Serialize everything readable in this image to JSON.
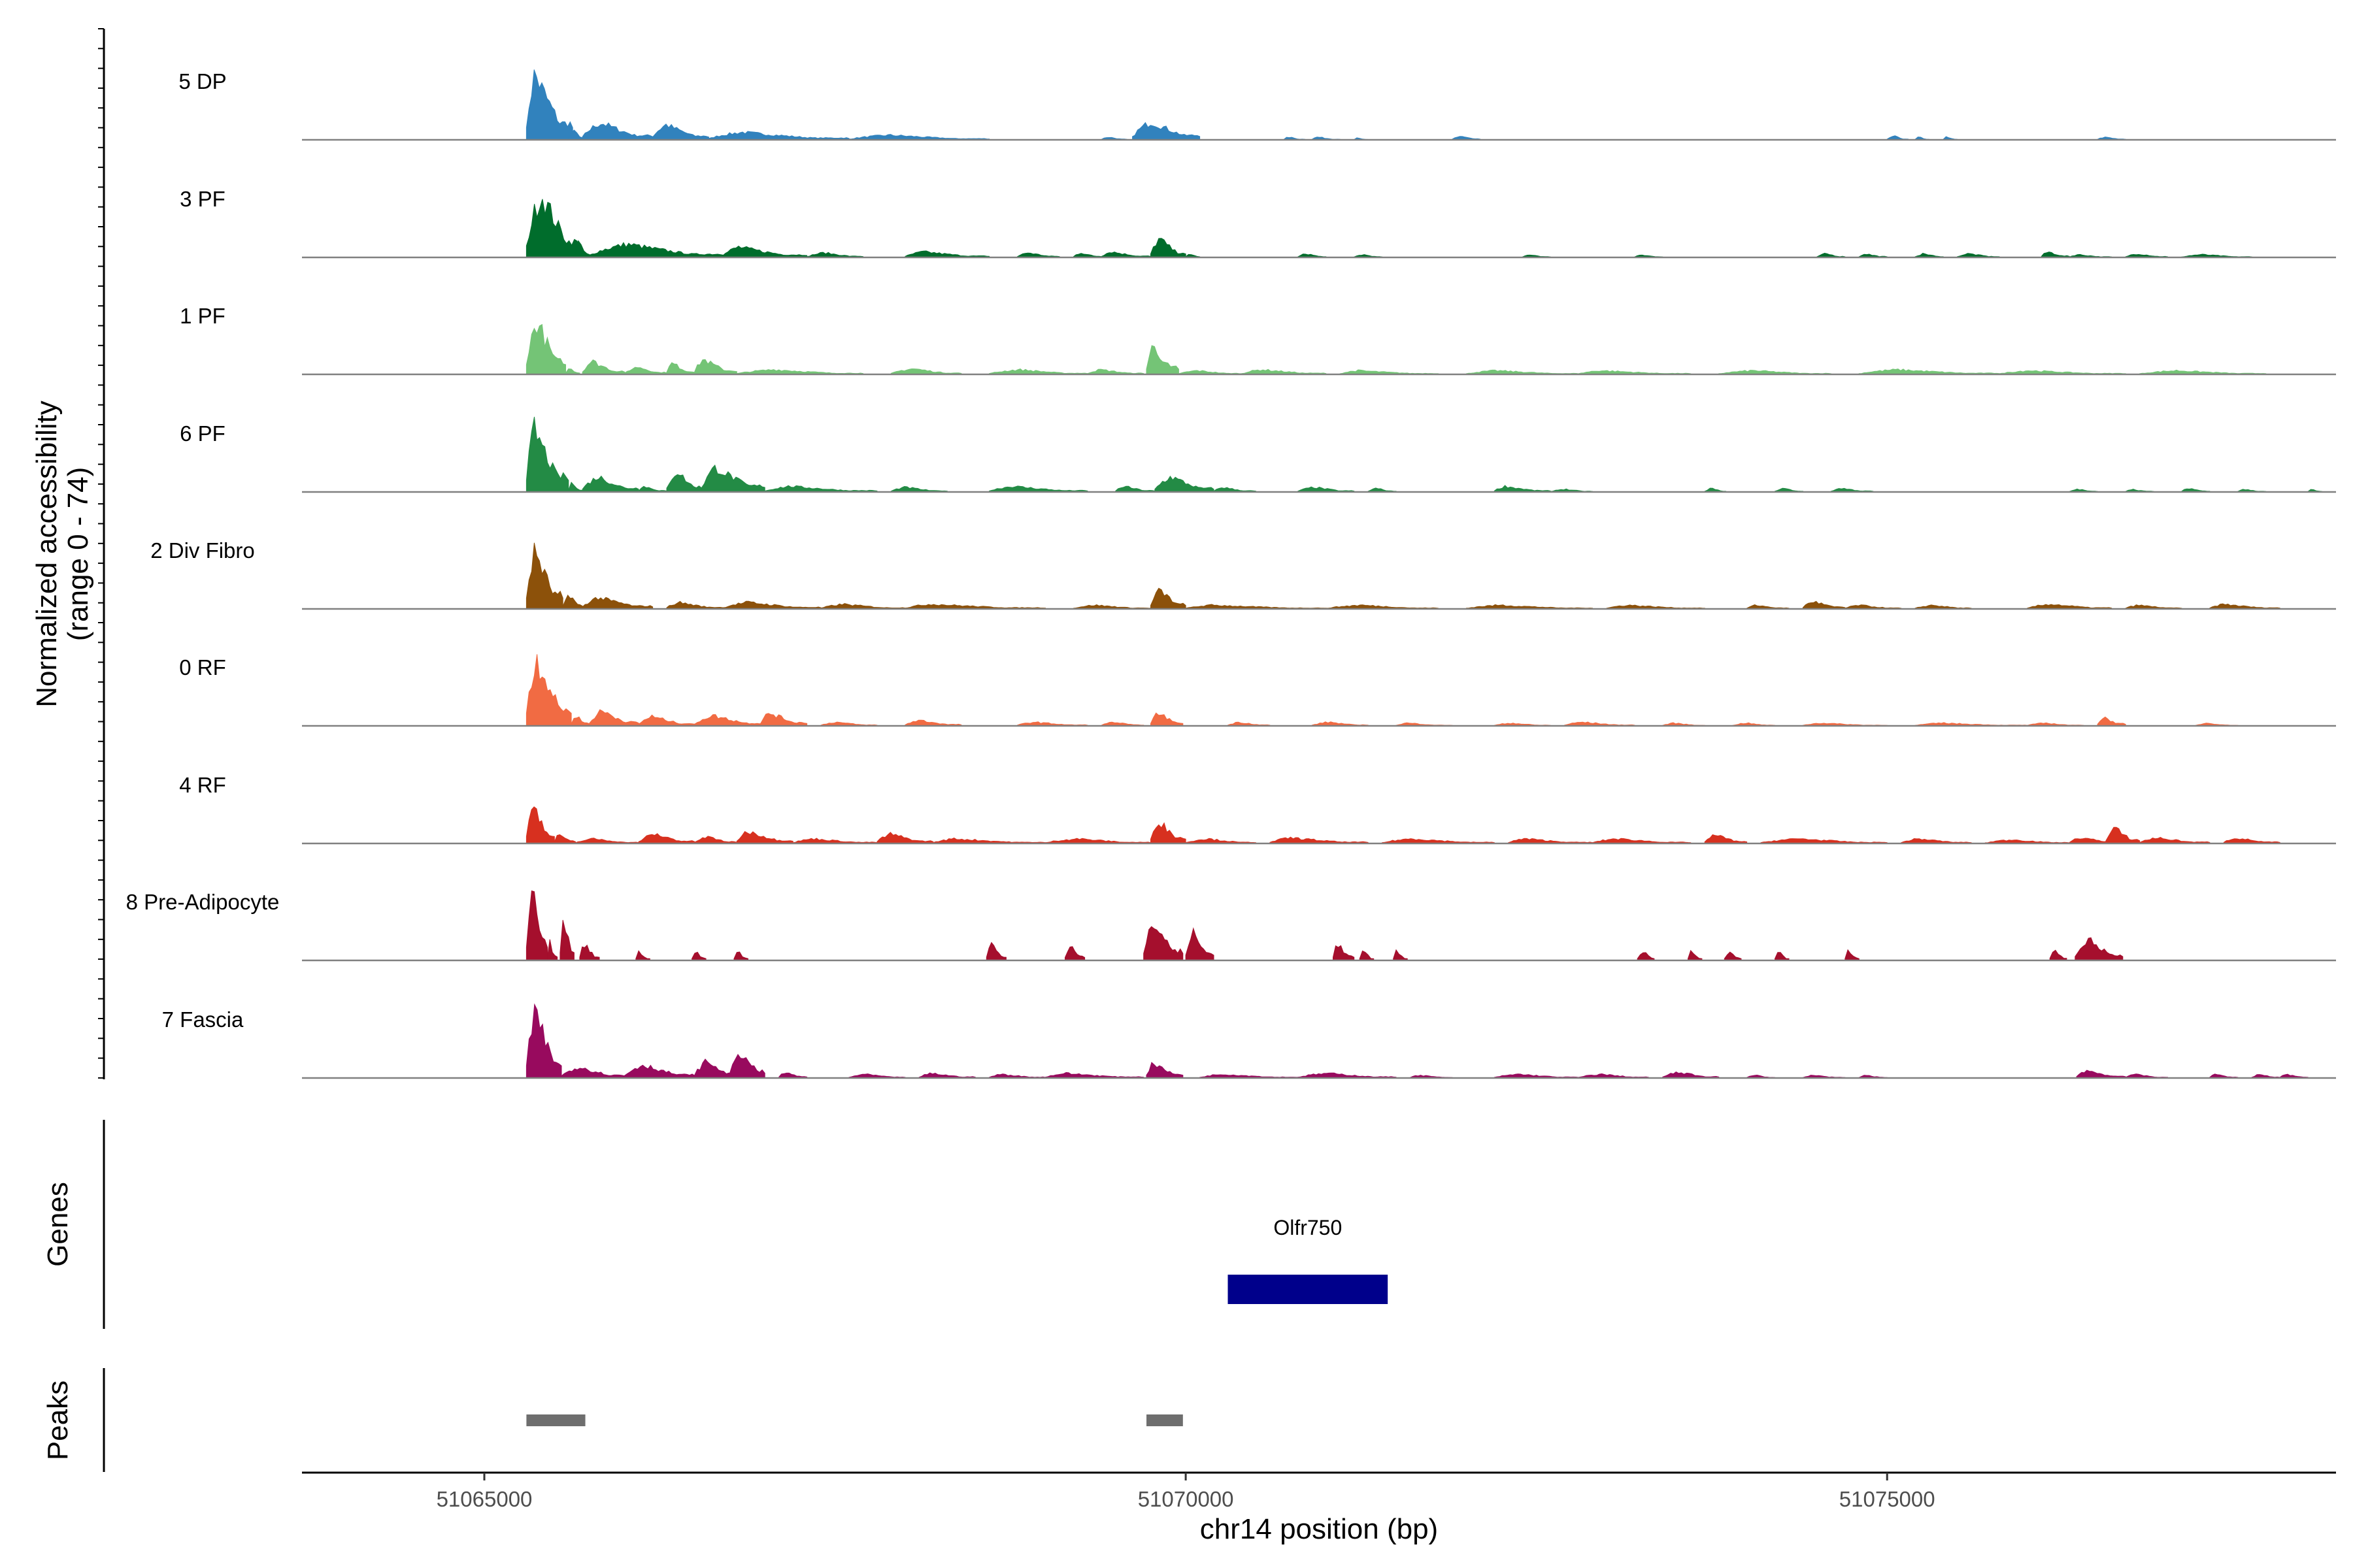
{
  "chart_data": {
    "type": "area",
    "title": "",
    "chromosome": "chr14",
    "xlabel": "chr14 position (bp)",
    "ylabel": "Normalized accessibility",
    "ylabel_sub": "(range 0 - 74)",
    "xlim": [
      51063700,
      51078200
    ],
    "ylim": [
      0,
      74
    ],
    "x_ticks": [
      51065000,
      51070000,
      51075000
    ],
    "x_tick_labels": [
      "51065000",
      "51070000",
      "51075000"
    ],
    "series": [
      {
        "name": "5 DP",
        "color": "#3182BD",
        "peaks": [
          [
            51065300,
            51065630,
            70
          ],
          [
            51065600,
            51065700,
            12
          ],
          [
            51065700,
            51066200,
            18
          ],
          [
            51066200,
            51066600,
            16
          ],
          [
            51066600,
            51067600,
            8
          ],
          [
            51067600,
            51068600,
            5
          ],
          [
            51069400,
            51069580,
            3
          ],
          [
            51069620,
            51070100,
            19
          ],
          [
            51070700,
            51070850,
            3
          ],
          [
            51070900,
            51071100,
            3
          ],
          [
            51071200,
            51071300,
            2
          ],
          [
            51071900,
            51072100,
            4
          ],
          [
            51075000,
            51075150,
            4
          ],
          [
            51075200,
            51075300,
            3
          ],
          [
            51075400,
            51075500,
            3
          ],
          [
            51076500,
            51076700,
            3
          ]
        ]
      },
      {
        "name": "3 PF",
        "color": "#006D2C",
        "peaks": [
          [
            51065300,
            51065680,
            67
          ],
          [
            51065650,
            51065750,
            16
          ],
          [
            51065750,
            51066700,
            14
          ],
          [
            51066700,
            51067300,
            11
          ],
          [
            51067300,
            51067700,
            5
          ],
          [
            51068000,
            51068600,
            6
          ],
          [
            51068800,
            51069100,
            5
          ],
          [
            51069200,
            51069400,
            5
          ],
          [
            51069400,
            51069750,
            6
          ],
          [
            51069750,
            51070000,
            20
          ],
          [
            51070000,
            51070100,
            4
          ],
          [
            51070800,
            51071000,
            4
          ],
          [
            51071200,
            51071400,
            3
          ],
          [
            51072400,
            51072600,
            3
          ],
          [
            51073200,
            51073400,
            3
          ],
          [
            51074500,
            51074700,
            4
          ],
          [
            51074800,
            51075000,
            4
          ],
          [
            51075200,
            51075400,
            4
          ],
          [
            51075500,
            51075800,
            4
          ],
          [
            51076100,
            51076300,
            6
          ],
          [
            51076300,
            51076600,
            3
          ],
          [
            51076700,
            51077000,
            4
          ],
          [
            51077100,
            51077600,
            3
          ]
        ]
      },
      {
        "name": "1 PF",
        "color": "#74C476",
        "peaks": [
          [
            51065300,
            51065580,
            56
          ],
          [
            51065580,
            51065680,
            8
          ],
          [
            51065700,
            51066000,
            14
          ],
          [
            51066000,
            51066300,
            8
          ],
          [
            51066300,
            51066500,
            12
          ],
          [
            51066500,
            51066800,
            16
          ],
          [
            51066800,
            51067700,
            5
          ],
          [
            51067900,
            51068400,
            6
          ],
          [
            51068600,
            51069300,
            5
          ],
          [
            51069300,
            51069700,
            5
          ],
          [
            51069720,
            51069950,
            30
          ],
          [
            51069950,
            51070400,
            4
          ],
          [
            51070400,
            51071000,
            5
          ],
          [
            51071100,
            51071800,
            4
          ],
          [
            51072000,
            51072800,
            4
          ],
          [
            51072800,
            51073600,
            4
          ],
          [
            51073800,
            51074600,
            4
          ],
          [
            51074800,
            51075800,
            5
          ],
          [
            51075800,
            51076700,
            4
          ],
          [
            51076800,
            51077700,
            4
          ]
        ]
      },
      {
        "name": "6 PF",
        "color": "#238B45",
        "peaks": [
          [
            51065300,
            51065600,
            67
          ],
          [
            51065600,
            51065700,
            10
          ],
          [
            51065700,
            51066100,
            16
          ],
          [
            51066100,
            51066300,
            6
          ],
          [
            51066300,
            51066550,
            22
          ],
          [
            51066550,
            51067000,
            26
          ],
          [
            51067000,
            51067800,
            6
          ],
          [
            51067900,
            51068300,
            5
          ],
          [
            51068600,
            51069300,
            6
          ],
          [
            51069500,
            51069780,
            6
          ],
          [
            51069780,
            51070200,
            16
          ],
          [
            51070200,
            51070500,
            5
          ],
          [
            51070800,
            51071200,
            5
          ],
          [
            51071300,
            51071500,
            4
          ],
          [
            51072200,
            51072600,
            6
          ],
          [
            51072600,
            51072900,
            3
          ],
          [
            51073700,
            51073850,
            4
          ],
          [
            51074200,
            51074400,
            4
          ],
          [
            51074600,
            51074900,
            4
          ],
          [
            51076300,
            51076500,
            3
          ],
          [
            51076700,
            51076900,
            3
          ],
          [
            51077100,
            51077300,
            4
          ],
          [
            51077500,
            51077700,
            3
          ],
          [
            51078000,
            51078100,
            3
          ]
        ]
      },
      {
        "name": "2 Div Fibro",
        "color": "#8C510A",
        "peaks": [
          [
            51065300,
            51065560,
            62
          ],
          [
            51065560,
            51065700,
            16
          ],
          [
            51065700,
            51066200,
            12
          ],
          [
            51066300,
            51066700,
            7
          ],
          [
            51066700,
            51067400,
            7
          ],
          [
            51067400,
            51068000,
            5
          ],
          [
            51068000,
            51069000,
            5
          ],
          [
            51069200,
            51069750,
            4
          ],
          [
            51069750,
            51070000,
            20
          ],
          [
            51070000,
            51071000,
            4
          ],
          [
            51071000,
            51071800,
            4
          ],
          [
            51072000,
            51072900,
            4
          ],
          [
            51073000,
            51073700,
            4
          ],
          [
            51074000,
            51074300,
            4
          ],
          [
            51074400,
            51074700,
            8
          ],
          [
            51074700,
            51075100,
            4
          ],
          [
            51075200,
            51075600,
            4
          ],
          [
            51076000,
            51076600,
            5
          ],
          [
            51076700,
            51077100,
            4
          ],
          [
            51077300,
            51077800,
            5
          ]
        ]
      },
      {
        "name": "0 RF",
        "color": "#F16B43",
        "peaks": [
          [
            51065300,
            51065620,
            72
          ],
          [
            51065620,
            51065750,
            12
          ],
          [
            51065750,
            51066100,
            16
          ],
          [
            51066100,
            51066500,
            10
          ],
          [
            51066500,
            51067000,
            11
          ],
          [
            51066970,
            51067300,
            14
          ],
          [
            51067400,
            51067800,
            4
          ],
          [
            51068000,
            51068400,
            6
          ],
          [
            51068800,
            51069300,
            4
          ],
          [
            51069400,
            51069700,
            4
          ],
          [
            51069750,
            51069980,
            14
          ],
          [
            51070300,
            51070600,
            4
          ],
          [
            51070900,
            51071300,
            4
          ],
          [
            51071500,
            51071900,
            3
          ],
          [
            51072200,
            51072600,
            3
          ],
          [
            51072700,
            51073200,
            4
          ],
          [
            51073400,
            51073700,
            3
          ],
          [
            51073900,
            51074200,
            3
          ],
          [
            51074400,
            51075000,
            3
          ],
          [
            51075200,
            51076000,
            3
          ],
          [
            51076000,
            51076400,
            3
          ],
          [
            51076500,
            51076700,
            9
          ],
          [
            51077200,
            51077500,
            3
          ]
        ]
      },
      {
        "name": "4 RF",
        "color": "#D7301F",
        "peaks": [
          [
            51065300,
            51065500,
            40
          ],
          [
            51065500,
            51065650,
            10
          ],
          [
            51065650,
            51066100,
            5
          ],
          [
            51066100,
            51066500,
            10
          ],
          [
            51066500,
            51066800,
            7
          ],
          [
            51066800,
            51067200,
            13
          ],
          [
            51067200,
            51067800,
            5
          ],
          [
            51067800,
            51068200,
            10
          ],
          [
            51068200,
            51069000,
            5
          ],
          [
            51069000,
            51069750,
            5
          ],
          [
            51069750,
            51070000,
            25
          ],
          [
            51070000,
            51070500,
            5
          ],
          [
            51070600,
            51071300,
            6
          ],
          [
            51071400,
            51072200,
            5
          ],
          [
            51072300,
            51072900,
            5
          ],
          [
            51072900,
            51073600,
            5
          ],
          [
            51073700,
            51074000,
            9
          ],
          [
            51074100,
            51075000,
            5
          ],
          [
            51075100,
            51075600,
            5
          ],
          [
            51075700,
            51076300,
            4
          ],
          [
            51076300,
            51076700,
            6
          ],
          [
            51076560,
            51076800,
            16
          ],
          [
            51076800,
            51077300,
            6
          ],
          [
            51077400,
            51077800,
            6
          ]
        ]
      },
      {
        "name": "8 Pre-Adipocyte",
        "color": "#A50F2D",
        "peaks": [
          [
            51065300,
            51065450,
            74
          ],
          [
            51065450,
            51065520,
            20
          ],
          [
            51065540,
            51065640,
            45
          ],
          [
            51065680,
            51065820,
            18
          ],
          [
            51066080,
            51066180,
            10
          ],
          [
            51066480,
            51066580,
            10
          ],
          [
            51066780,
            51066880,
            10
          ],
          [
            51068580,
            51068720,
            18
          ],
          [
            51069140,
            51069280,
            17
          ],
          [
            51069700,
            51069980,
            40
          ],
          [
            51070000,
            51070200,
            30
          ],
          [
            51071050,
            51071200,
            18
          ],
          [
            51071240,
            51071340,
            10
          ],
          [
            51071480,
            51071580,
            10
          ],
          [
            51073220,
            51073340,
            10
          ],
          [
            51073580,
            51073680,
            10
          ],
          [
            51073840,
            51073960,
            10
          ],
          [
            51074200,
            51074300,
            10
          ],
          [
            51074700,
            51074800,
            10
          ],
          [
            51076160,
            51076280,
            12
          ],
          [
            51076340,
            51076680,
            22
          ]
        ]
      },
      {
        "name": "7 Fascia",
        "color": "#980A5E",
        "peaks": [
          [
            51065300,
            51065550,
            70
          ],
          [
            51065550,
            51066000,
            12
          ],
          [
            51066000,
            51066500,
            14
          ],
          [
            51066500,
            51066800,
            18
          ],
          [
            51066750,
            51067000,
            28
          ],
          [
            51067100,
            51067300,
            6
          ],
          [
            51067600,
            51068000,
            4
          ],
          [
            51068100,
            51068500,
            5
          ],
          [
            51068600,
            51069000,
            4
          ],
          [
            51069000,
            51069700,
            5
          ],
          [
            51069720,
            51069980,
            16
          ],
          [
            51070100,
            51070800,
            4
          ],
          [
            51070800,
            51071500,
            5
          ],
          [
            51071600,
            51071900,
            3
          ],
          [
            51072200,
            51072800,
            4
          ],
          [
            51072800,
            51073300,
            4
          ],
          [
            51073400,
            51073800,
            6
          ],
          [
            51074000,
            51074200,
            3
          ],
          [
            51074400,
            51074700,
            3
          ],
          [
            51074800,
            51075000,
            3
          ],
          [
            51076350,
            51076700,
            8
          ],
          [
            51076700,
            51077000,
            4
          ],
          [
            51077300,
            51077500,
            4
          ],
          [
            51077600,
            51077800,
            4
          ],
          [
            51077800,
            51078000,
            4
          ]
        ]
      }
    ],
    "genes_track": {
      "label": "Genes",
      "genes": [
        {
          "name": "Olfr750",
          "start": 51070300,
          "end": 51071440,
          "color": "#00008B"
        }
      ]
    },
    "peaks_track": {
      "label": "Peaks",
      "color": "#6E6E6E",
      "peaks": [
        {
          "start": 51065300,
          "end": 51065720
        },
        {
          "start": 51069720,
          "end": 51069980
        }
      ]
    }
  }
}
